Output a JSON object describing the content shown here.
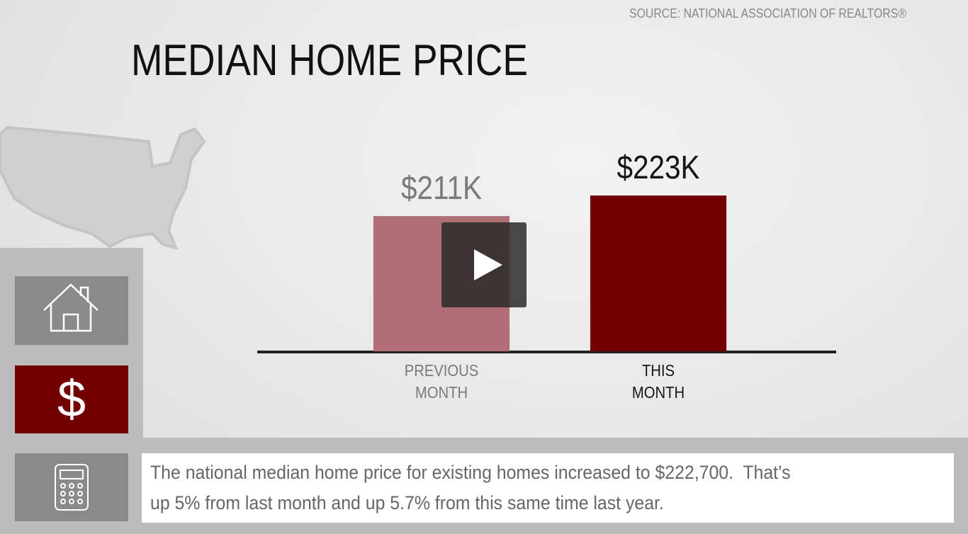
{
  "source": "SOURCE: NATIONAL ASSOCIATION OF REALTORS®",
  "description": "The national median home price for existing homes increased to $222,700.  That’s up 5% from last month and up 5.7% from this same time last year.",
  "nav": {
    "dollar": "$"
  },
  "chart_data": {
    "type": "bar",
    "title": "MEDIAN HOME PRICE",
    "categories": [
      "PREVIOUS MONTH",
      "THIS MONTH"
    ],
    "values": [
      211,
      223
    ],
    "value_labels": [
      "$211K",
      "$223K"
    ],
    "colors": [
      "#b06e76",
      "#720000"
    ],
    "label_colors": [
      "#7a7a7a",
      "#151515"
    ],
    "ylim": [
      132,
      300
    ]
  }
}
